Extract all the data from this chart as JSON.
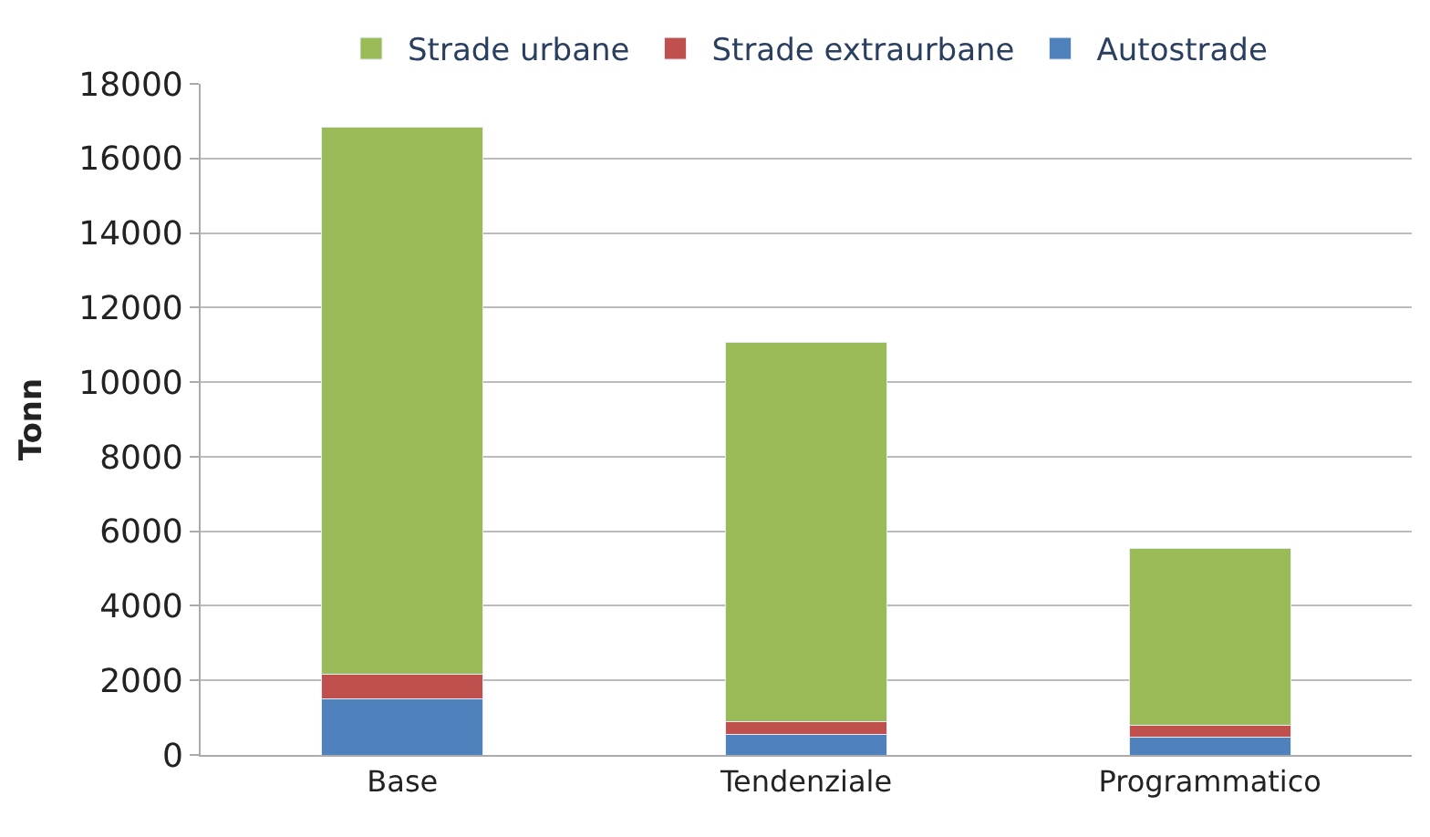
{
  "chart_data": {
    "type": "bar",
    "stacked": true,
    "ylabel": "Tonn",
    "categories": [
      "Base",
      "Tendenziale",
      "Programmatico"
    ],
    "series": [
      {
        "name": "Autostrade",
        "color": "#4f81bd",
        "values": [
          1500,
          550,
          480
        ]
      },
      {
        "name": "Strade extraurbane",
        "color": "#c0504d",
        "values": [
          670,
          340,
          310
        ]
      },
      {
        "name": "Strade urbane",
        "color": "#9bbb59",
        "values": [
          14680,
          10180,
          4740
        ]
      }
    ],
    "ylim": [
      0,
      18000
    ],
    "yticks": [
      0,
      2000,
      4000,
      6000,
      8000,
      10000,
      12000,
      14000,
      16000,
      18000
    ],
    "grid": "y",
    "legend": "top"
  }
}
